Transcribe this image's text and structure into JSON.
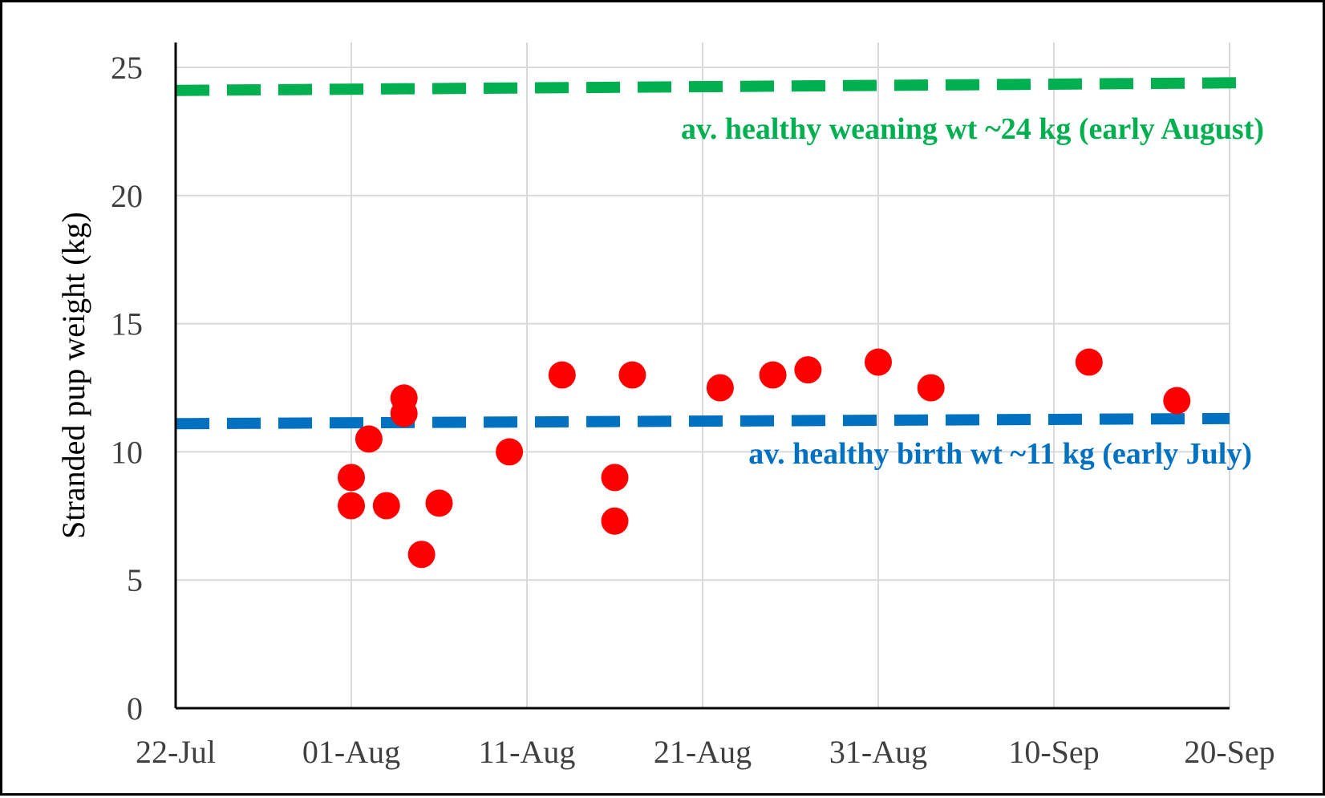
{
  "chart_data": {
    "type": "scatter",
    "ylabel": "Stranded pup weight (kg)",
    "xlabel": "",
    "x_ticks": [
      "22-Jul",
      "01-Aug",
      "11-Aug",
      "21-Aug",
      "31-Aug",
      "10-Sep",
      "20-Sep"
    ],
    "x_range": [
      "22-Jul",
      "20-Sep"
    ],
    "ylim": [
      0,
      25
    ],
    "y_ticks": [
      "0",
      "5",
      "10",
      "15",
      "20",
      "25"
    ],
    "grid": true,
    "legend": "none",
    "marker_color": "#ff0000",
    "points": [
      {
        "x": "01-Aug",
        "y": 9.0
      },
      {
        "x": "01-Aug",
        "y": 7.9
      },
      {
        "x": "02-Aug",
        "y": 10.5
      },
      {
        "x": "03-Aug",
        "y": 7.9
      },
      {
        "x": "04-Aug",
        "y": 12.1
      },
      {
        "x": "04-Aug",
        "y": 11.5
      },
      {
        "x": "05-Aug",
        "y": 6.0
      },
      {
        "x": "06-Aug",
        "y": 8.0
      },
      {
        "x": "10-Aug",
        "y": 10.0
      },
      {
        "x": "13-Aug",
        "y": 13.0
      },
      {
        "x": "16-Aug",
        "y": 9.0
      },
      {
        "x": "16-Aug",
        "y": 7.3
      },
      {
        "x": "17-Aug",
        "y": 13.0
      },
      {
        "x": "22-Aug",
        "y": 12.5
      },
      {
        "x": "25-Aug",
        "y": 13.0
      },
      {
        "x": "27-Aug",
        "y": 13.2
      },
      {
        "x": "31-Aug",
        "y": 13.5
      },
      {
        "x": "03-Sep",
        "y": 12.5
      },
      {
        "x": "12-Sep",
        "y": 13.5
      },
      {
        "x": "17-Sep",
        "y": 12.0
      }
    ],
    "reference_lines": [
      {
        "label": "av. healthy weaning wt ~24 kg (early August)",
        "color": "#00b050",
        "style": "dashed",
        "y_start": 24.1,
        "y_end": 24.4,
        "x_start": "22-Jul",
        "x_end": "21-Sep"
      },
      {
        "label": "av. healthy birth wt ~11 kg (early July)",
        "color": "#0070c0",
        "style": "dashed",
        "y_start": 11.1,
        "y_end": 11.3,
        "x_start": "22-Jul",
        "x_end": "20-Sep"
      }
    ]
  }
}
